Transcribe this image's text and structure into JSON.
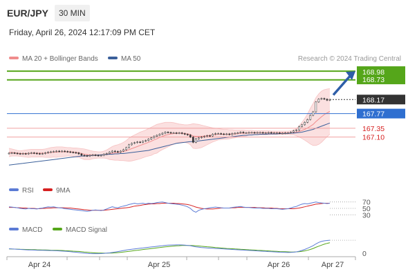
{
  "header": {
    "pair": "EUR/JPY",
    "timeframe": "30 MIN",
    "timestamp": "Friday, April 26, 2024 12:17:09 PM CET"
  },
  "credit": "Research © 2024 Trading Central",
  "legend": {
    "price": [
      {
        "label": "MA 20 + Bollinger Bands",
        "color": "#f08c8c"
      },
      {
        "label": "MA 50",
        "color": "#3a5f9a"
      }
    ],
    "rsi": [
      {
        "label": "RSI",
        "color": "#5b7bd5"
      },
      {
        "label": "9MA",
        "color": "#d62020"
      }
    ],
    "macd": [
      {
        "label": "MACD",
        "color": "#5b7bd5"
      },
      {
        "label": "MACD Signal",
        "color": "#55a61a"
      }
    ]
  },
  "colors": {
    "candle": "#333333",
    "green": "#55a61a",
    "red_level": "#d62020",
    "blue_level": "#2f6fd0",
    "current": "#333333",
    "band_fill": "#fbe0e0"
  },
  "chart_data": {
    "type": "candlestick",
    "instrument": "EUR/JPY",
    "interval": "30 MIN",
    "x_ticks": [
      "Apr 24",
      "Apr 25",
      "Apr 26",
      "Apr 27"
    ],
    "ylim": [
      166.05,
      169.1
    ],
    "levels": [
      {
        "value": 168.98,
        "label": "168.98",
        "color": "#55a61a"
      },
      {
        "value": 168.73,
        "label": "168.73",
        "color": "#55a61a"
      },
      {
        "value": 168.17,
        "label": "168.17",
        "color": "#333333",
        "current": true
      },
      {
        "value": 167.77,
        "label": "167.77",
        "color": "#2f6fd0"
      },
      {
        "value": 167.35,
        "label": "167.35",
        "color": "#d62020"
      },
      {
        "value": 167.1,
        "label": "167.10",
        "color": "#d62020"
      }
    ],
    "close": [
      166.64,
      166.65,
      166.64,
      166.63,
      166.62,
      166.63,
      166.62,
      166.64,
      166.65,
      166.64,
      166.63,
      166.62,
      166.63,
      166.65,
      166.67,
      166.68,
      166.69,
      166.7,
      166.69,
      166.7,
      166.69,
      166.68,
      166.67,
      166.66,
      166.65,
      166.62,
      166.58,
      166.57,
      166.56,
      166.58,
      166.59,
      166.58,
      166.57,
      166.58,
      166.61,
      166.63,
      166.67,
      166.7,
      166.69,
      166.67,
      166.7,
      166.74,
      166.8,
      166.88,
      166.92,
      166.94,
      166.96,
      166.95,
      166.98,
      167.0,
      167.04,
      167.08,
      167.12,
      167.15,
      167.18,
      167.21,
      167.24,
      167.23,
      167.22,
      167.22,
      167.21,
      167.22,
      167.2,
      167.18,
      167.16,
      167.1,
      166.95,
      167.05,
      167.08,
      167.1,
      167.12,
      167.14,
      167.13,
      167.18,
      167.2,
      167.2,
      167.19,
      167.18,
      167.19,
      167.17,
      167.2,
      167.21,
      167.22,
      167.24,
      167.22,
      167.22,
      167.23,
      167.23,
      167.22,
      167.23,
      167.23,
      167.22,
      167.22,
      167.23,
      167.22,
      167.22,
      167.22,
      167.21,
      167.21,
      167.22,
      167.22,
      167.24,
      167.28,
      167.3,
      167.4,
      167.45,
      167.52,
      167.6,
      167.72,
      167.82,
      168.1,
      168.18,
      168.2,
      168.18,
      168.15,
      168.17
    ],
    "open": [
      166.63,
      166.64,
      166.65,
      166.64,
      166.63,
      166.62,
      166.63,
      166.62,
      166.64,
      166.65,
      166.64,
      166.63,
      166.62,
      166.63,
      166.65,
      166.67,
      166.68,
      166.69,
      166.7,
      166.69,
      166.7,
      166.69,
      166.68,
      166.67,
      166.66,
      166.65,
      166.62,
      166.58,
      166.57,
      166.56,
      166.58,
      166.59,
      166.58,
      166.57,
      166.58,
      166.61,
      166.63,
      166.67,
      166.7,
      166.69,
      166.67,
      166.7,
      166.74,
      166.8,
      166.88,
      166.92,
      166.94,
      166.96,
      166.95,
      166.98,
      167.0,
      167.04,
      167.08,
      167.12,
      167.15,
      167.18,
      167.21,
      167.24,
      167.23,
      167.22,
      167.22,
      167.21,
      167.22,
      167.2,
      167.18,
      167.16,
      167.1,
      166.95,
      167.05,
      167.08,
      167.1,
      167.12,
      167.14,
      167.13,
      167.18,
      167.2,
      167.2,
      167.19,
      167.18,
      167.19,
      167.17,
      167.2,
      167.21,
      167.22,
      167.24,
      167.22,
      167.22,
      167.23,
      167.23,
      167.22,
      167.23,
      167.23,
      167.22,
      167.22,
      167.23,
      167.22,
      167.22,
      167.22,
      167.21,
      167.21,
      167.22,
      167.22,
      167.24,
      167.28,
      167.3,
      167.4,
      167.45,
      167.52,
      167.6,
      167.72,
      167.82,
      168.1,
      168.18,
      168.2,
      168.18,
      168.15
    ],
    "ma20": [
      166.66,
      166.66,
      166.65,
      166.64,
      166.63,
      166.63,
      166.63,
      166.63,
      166.64,
      166.64,
      166.64,
      166.64,
      166.64,
      166.64,
      166.65,
      166.66,
      166.67,
      166.67,
      166.68,
      166.68,
      166.68,
      166.68,
      166.68,
      166.67,
      166.66,
      166.65,
      166.63,
      166.61,
      166.6,
      166.59,
      166.59,
      166.59,
      166.59,
      166.59,
      166.6,
      166.61,
      166.62,
      166.64,
      166.65,
      166.66,
      166.67,
      166.69,
      166.71,
      166.74,
      166.77,
      166.8,
      166.83,
      166.86,
      166.89,
      166.92,
      166.95,
      166.98,
      167.02,
      167.05,
      167.09,
      167.12,
      167.15,
      167.17,
      167.19,
      167.2,
      167.21,
      167.21,
      167.21,
      167.2,
      167.19,
      167.17,
      167.13,
      167.12,
      167.12,
      167.12,
      167.13,
      167.14,
      167.15,
      167.16,
      167.17,
      167.18,
      167.18,
      167.18,
      167.18,
      167.18,
      167.19,
      167.19,
      167.2,
      167.21,
      167.21,
      167.21,
      167.22,
      167.22,
      167.22,
      167.22,
      167.22,
      167.22,
      167.22,
      167.22,
      167.22,
      167.22,
      167.22,
      167.22,
      167.22,
      167.22,
      167.22,
      167.22,
      167.23,
      167.24,
      167.26,
      167.29,
      167.32,
      167.36,
      167.41,
      167.46,
      167.54,
      167.61,
      167.68,
      167.74,
      167.79,
      167.83
    ],
    "ma50": [
      166.3,
      166.31,
      166.32,
      166.33,
      166.34,
      166.35,
      166.36,
      166.37,
      166.38,
      166.39,
      166.4,
      166.41,
      166.42,
      166.43,
      166.44,
      166.45,
      166.46,
      166.47,
      166.48,
      166.49,
      166.5,
      166.51,
      166.52,
      166.53,
      166.54,
      166.55,
      166.56,
      166.56,
      166.57,
      166.57,
      166.58,
      166.58,
      166.59,
      166.59,
      166.6,
      166.6,
      166.61,
      166.61,
      166.62,
      166.62,
      166.63,
      166.63,
      166.64,
      166.65,
      166.66,
      166.67,
      166.68,
      166.69,
      166.7,
      166.71,
      166.72,
      166.74,
      166.76,
      166.78,
      166.8,
      166.82,
      166.84,
      166.86,
      166.88,
      166.9,
      166.92,
      166.93,
      166.94,
      166.95,
      166.96,
      166.97,
      166.97,
      166.98,
      166.99,
      167.0,
      167.01,
      167.02,
      167.03,
      167.04,
      167.05,
      167.06,
      167.07,
      167.08,
      167.09,
      167.1,
      167.11,
      167.12,
      167.13,
      167.14,
      167.15,
      167.15,
      167.16,
      167.16,
      167.17,
      167.17,
      167.18,
      167.18,
      167.18,
      167.19,
      167.19,
      167.19,
      167.19,
      167.2,
      167.2,
      167.2,
      167.2,
      167.21,
      167.21,
      167.22,
      167.23,
      167.24,
      167.26,
      167.28,
      167.3,
      167.32,
      167.35,
      167.38,
      167.41,
      167.44,
      167.47,
      167.5
    ],
    "bb_upper": [
      166.78,
      166.76,
      166.74,
      166.72,
      166.71,
      166.72,
      166.73,
      166.74,
      166.75,
      166.75,
      166.75,
      166.75,
      166.75,
      166.76,
      166.78,
      166.8,
      166.81,
      166.82,
      166.82,
      166.82,
      166.81,
      166.8,
      166.8,
      166.79,
      166.79,
      166.78,
      166.77,
      166.76,
      166.74,
      166.72,
      166.7,
      166.69,
      166.68,
      166.68,
      166.7,
      166.73,
      166.78,
      166.83,
      166.86,
      166.88,
      166.91,
      166.95,
      167.0,
      167.07,
      167.12,
      167.16,
      167.2,
      167.24,
      167.27,
      167.3,
      167.34,
      167.38,
      167.42,
      167.46,
      167.48,
      167.5,
      167.52,
      167.52,
      167.52,
      167.51,
      167.49,
      167.47,
      167.46,
      167.45,
      167.45,
      167.46,
      167.48,
      167.47,
      167.46,
      167.44,
      167.42,
      167.4,
      167.38,
      167.36,
      167.35,
      167.34,
      167.33,
      167.32,
      167.32,
      167.31,
      167.31,
      167.3,
      167.3,
      167.3,
      167.3,
      167.29,
      167.29,
      167.29,
      167.28,
      167.28,
      167.28,
      167.28,
      167.28,
      167.28,
      167.27,
      167.27,
      167.27,
      167.27,
      167.27,
      167.27,
      167.27,
      167.28,
      167.3,
      167.34,
      167.42,
      167.52,
      167.63,
      167.76,
      167.92,
      168.06,
      168.22,
      168.33,
      168.41,
      168.45,
      168.47,
      168.48
    ],
    "bb_lower": [
      166.54,
      166.56,
      166.56,
      166.56,
      166.55,
      166.54,
      166.53,
      166.52,
      166.53,
      166.53,
      166.53,
      166.53,
      166.53,
      166.52,
      166.52,
      166.52,
      166.53,
      166.52,
      166.54,
      166.54,
      166.55,
      166.56,
      166.56,
      166.55,
      166.53,
      166.52,
      166.49,
      166.46,
      166.46,
      166.46,
      166.48,
      166.49,
      166.5,
      166.5,
      166.5,
      166.49,
      166.46,
      166.45,
      166.44,
      166.44,
      166.43,
      166.43,
      166.42,
      166.41,
      166.42,
      166.44,
      166.46,
      166.48,
      166.51,
      166.54,
      166.56,
      166.58,
      166.62,
      166.64,
      166.7,
      166.74,
      166.78,
      166.82,
      166.86,
      166.89,
      166.93,
      166.95,
      166.96,
      166.95,
      166.93,
      166.88,
      166.78,
      166.77,
      166.78,
      166.8,
      166.84,
      166.88,
      166.92,
      166.96,
      166.99,
      167.02,
      167.03,
      167.04,
      167.04,
      167.05,
      167.07,
      167.08,
      167.1,
      167.12,
      167.12,
      167.13,
      167.15,
      167.15,
      167.16,
      167.16,
      167.16,
      167.16,
      167.16,
      167.16,
      167.17,
      167.17,
      167.17,
      167.17,
      167.17,
      167.17,
      167.17,
      167.16,
      167.16,
      167.14,
      167.1,
      167.06,
      167.01,
      166.96,
      166.9,
      166.86,
      166.86,
      166.89,
      166.95,
      167.03,
      167.11,
      167.18
    ],
    "rsi": [
      55,
      54,
      53,
      52,
      50,
      49,
      48,
      50,
      49,
      49,
      48,
      50,
      51,
      53,
      55,
      54,
      55,
      53,
      52,
      51,
      49,
      48,
      47,
      46,
      45,
      44,
      43,
      42,
      41,
      42,
      44,
      45,
      44,
      43,
      45,
      48,
      52,
      55,
      53,
      52,
      55,
      57,
      59,
      62,
      64,
      66,
      64,
      65,
      66,
      64,
      66,
      65,
      66,
      68,
      69,
      70,
      68,
      66,
      65,
      64,
      63,
      62,
      60,
      58,
      55,
      50,
      42,
      38,
      44,
      47,
      49,
      50,
      52,
      53,
      54,
      53,
      52,
      51,
      51,
      51,
      53,
      54,
      55,
      56,
      54,
      53,
      53,
      52,
      51,
      51,
      51,
      50,
      50,
      50,
      49,
      49,
      49,
      48,
      47,
      48,
      49,
      51,
      54,
      56,
      60,
      63,
      65,
      64,
      66,
      68,
      70,
      68,
      67,
      66,
      65,
      66
    ],
    "rsi_ma": [
      53,
      53,
      53,
      52,
      52,
      51,
      51,
      50,
      50,
      50,
      49,
      49,
      50,
      50,
      51,
      51,
      52,
      52,
      52,
      52,
      52,
      51,
      51,
      50,
      49,
      48,
      47,
      46,
      45,
      44,
      44,
      44,
      44,
      44,
      44,
      45,
      46,
      47,
      48,
      49,
      50,
      51,
      52,
      53,
      55,
      57,
      58,
      59,
      61,
      62,
      63,
      64,
      64,
      65,
      65,
      66,
      66,
      66,
      66,
      66,
      65,
      65,
      64,
      63,
      62,
      60,
      57,
      54,
      52,
      50,
      49,
      48,
      48,
      48,
      49,
      50,
      51,
      51,
      51,
      51,
      52,
      52,
      53,
      53,
      53,
      53,
      53,
      53,
      53,
      52,
      52,
      52,
      51,
      51,
      51,
      50,
      50,
      49,
      49,
      49,
      49,
      49,
      49,
      50,
      51,
      53,
      55,
      57,
      59,
      61,
      63,
      64,
      65,
      66,
      66,
      66
    ],
    "rsi_ticks": [
      "70",
      "50",
      "30"
    ],
    "rsi_ylim": [
      20,
      80
    ],
    "macd": [
      0.06,
      0.058,
      0.056,
      0.054,
      0.052,
      0.05,
      0.048,
      0.046,
      0.045,
      0.044,
      0.043,
      0.042,
      0.041,
      0.04,
      0.039,
      0.038,
      0.037,
      0.036,
      0.034,
      0.032,
      0.03,
      0.027,
      0.024,
      0.021,
      0.018,
      0.014,
      0.01,
      0.006,
      0.003,
      0.001,
      0.0,
      0.0,
      0.0,
      0.001,
      0.003,
      0.006,
      0.01,
      0.015,
      0.02,
      0.026,
      0.032,
      0.038,
      0.044,
      0.05,
      0.054,
      0.058,
      0.062,
      0.066,
      0.07,
      0.074,
      0.078,
      0.082,
      0.086,
      0.09,
      0.094,
      0.098,
      0.102,
      0.104,
      0.106,
      0.107,
      0.108,
      0.108,
      0.107,
      0.105,
      0.102,
      0.098,
      0.09,
      0.084,
      0.08,
      0.076,
      0.073,
      0.07,
      0.068,
      0.066,
      0.064,
      0.062,
      0.06,
      0.058,
      0.056,
      0.054,
      0.052,
      0.05,
      0.048,
      0.046,
      0.044,
      0.042,
      0.04,
      0.038,
      0.036,
      0.034,
      0.032,
      0.03,
      0.028,
      0.026,
      0.024,
      0.022,
      0.02,
      0.018,
      0.017,
      0.016,
      0.015,
      0.016,
      0.018,
      0.022,
      0.03,
      0.04,
      0.052,
      0.066,
      0.082,
      0.098,
      0.12,
      0.138,
      0.15,
      0.158,
      0.162,
      0.165
    ],
    "macd_signal": [
      0.058,
      0.057,
      0.056,
      0.055,
      0.054,
      0.053,
      0.052,
      0.051,
      0.05,
      0.049,
      0.048,
      0.047,
      0.046,
      0.045,
      0.044,
      0.043,
      0.042,
      0.041,
      0.04,
      0.039,
      0.037,
      0.035,
      0.033,
      0.031,
      0.029,
      0.027,
      0.024,
      0.021,
      0.018,
      0.015,
      0.012,
      0.01,
      0.008,
      0.007,
      0.006,
      0.006,
      0.007,
      0.008,
      0.01,
      0.013,
      0.016,
      0.02,
      0.024,
      0.028,
      0.033,
      0.038,
      0.042,
      0.046,
      0.051,
      0.055,
      0.059,
      0.063,
      0.067,
      0.071,
      0.075,
      0.079,
      0.083,
      0.087,
      0.09,
      0.093,
      0.096,
      0.098,
      0.1,
      0.101,
      0.101,
      0.101,
      0.099,
      0.097,
      0.094,
      0.091,
      0.088,
      0.085,
      0.082,
      0.079,
      0.076,
      0.073,
      0.07,
      0.067,
      0.064,
      0.062,
      0.06,
      0.058,
      0.056,
      0.054,
      0.052,
      0.05,
      0.048,
      0.046,
      0.044,
      0.042,
      0.04,
      0.038,
      0.036,
      0.034,
      0.032,
      0.03,
      0.028,
      0.026,
      0.025,
      0.024,
      0.022,
      0.021,
      0.021,
      0.022,
      0.024,
      0.028,
      0.034,
      0.042,
      0.052,
      0.064,
      0.078,
      0.092,
      0.104,
      0.116,
      0.126,
      0.134
    ],
    "macd_ticks": [
      "0"
    ],
    "macd_ylim": [
      -0.02,
      0.2
    ]
  }
}
